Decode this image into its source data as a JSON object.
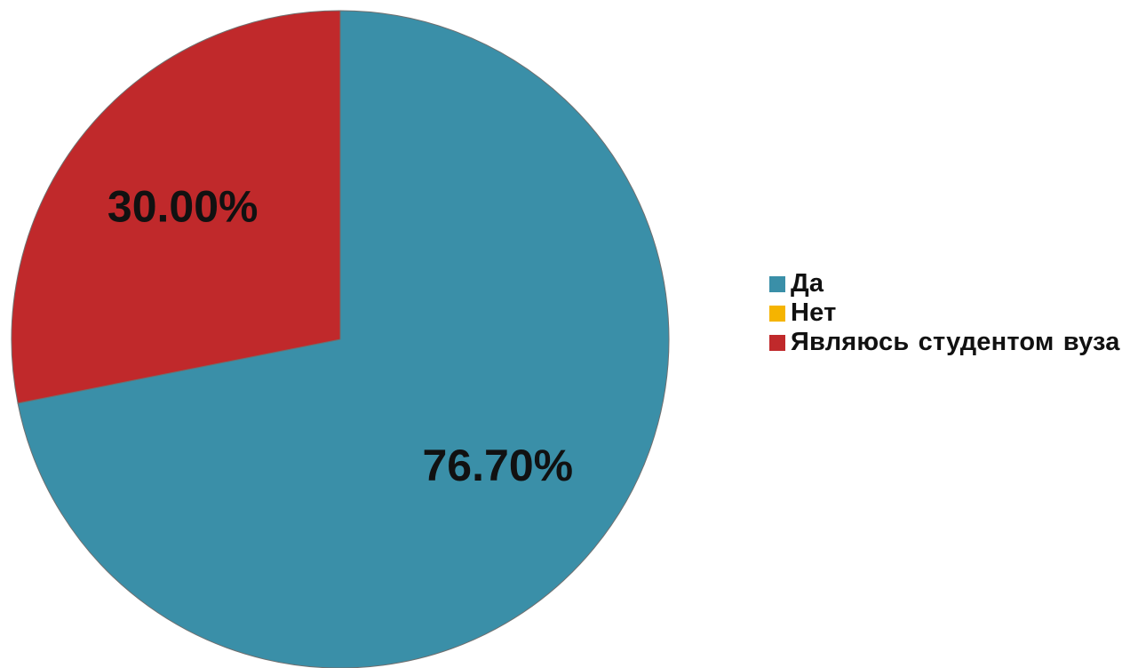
{
  "chart_data": {
    "type": "pie",
    "series": [
      {
        "values": [
          76.7,
          0,
          30.0
        ]
      }
    ],
    "categories": [
      "Да",
      "Нет",
      "Являюсь студентом вуза"
    ],
    "data_labels": [
      "76.70%",
      "",
      "30.00%"
    ],
    "colors": [
      "#3a8fa8",
      "#f5b400",
      "#c0292b"
    ],
    "legend_position": "right"
  }
}
